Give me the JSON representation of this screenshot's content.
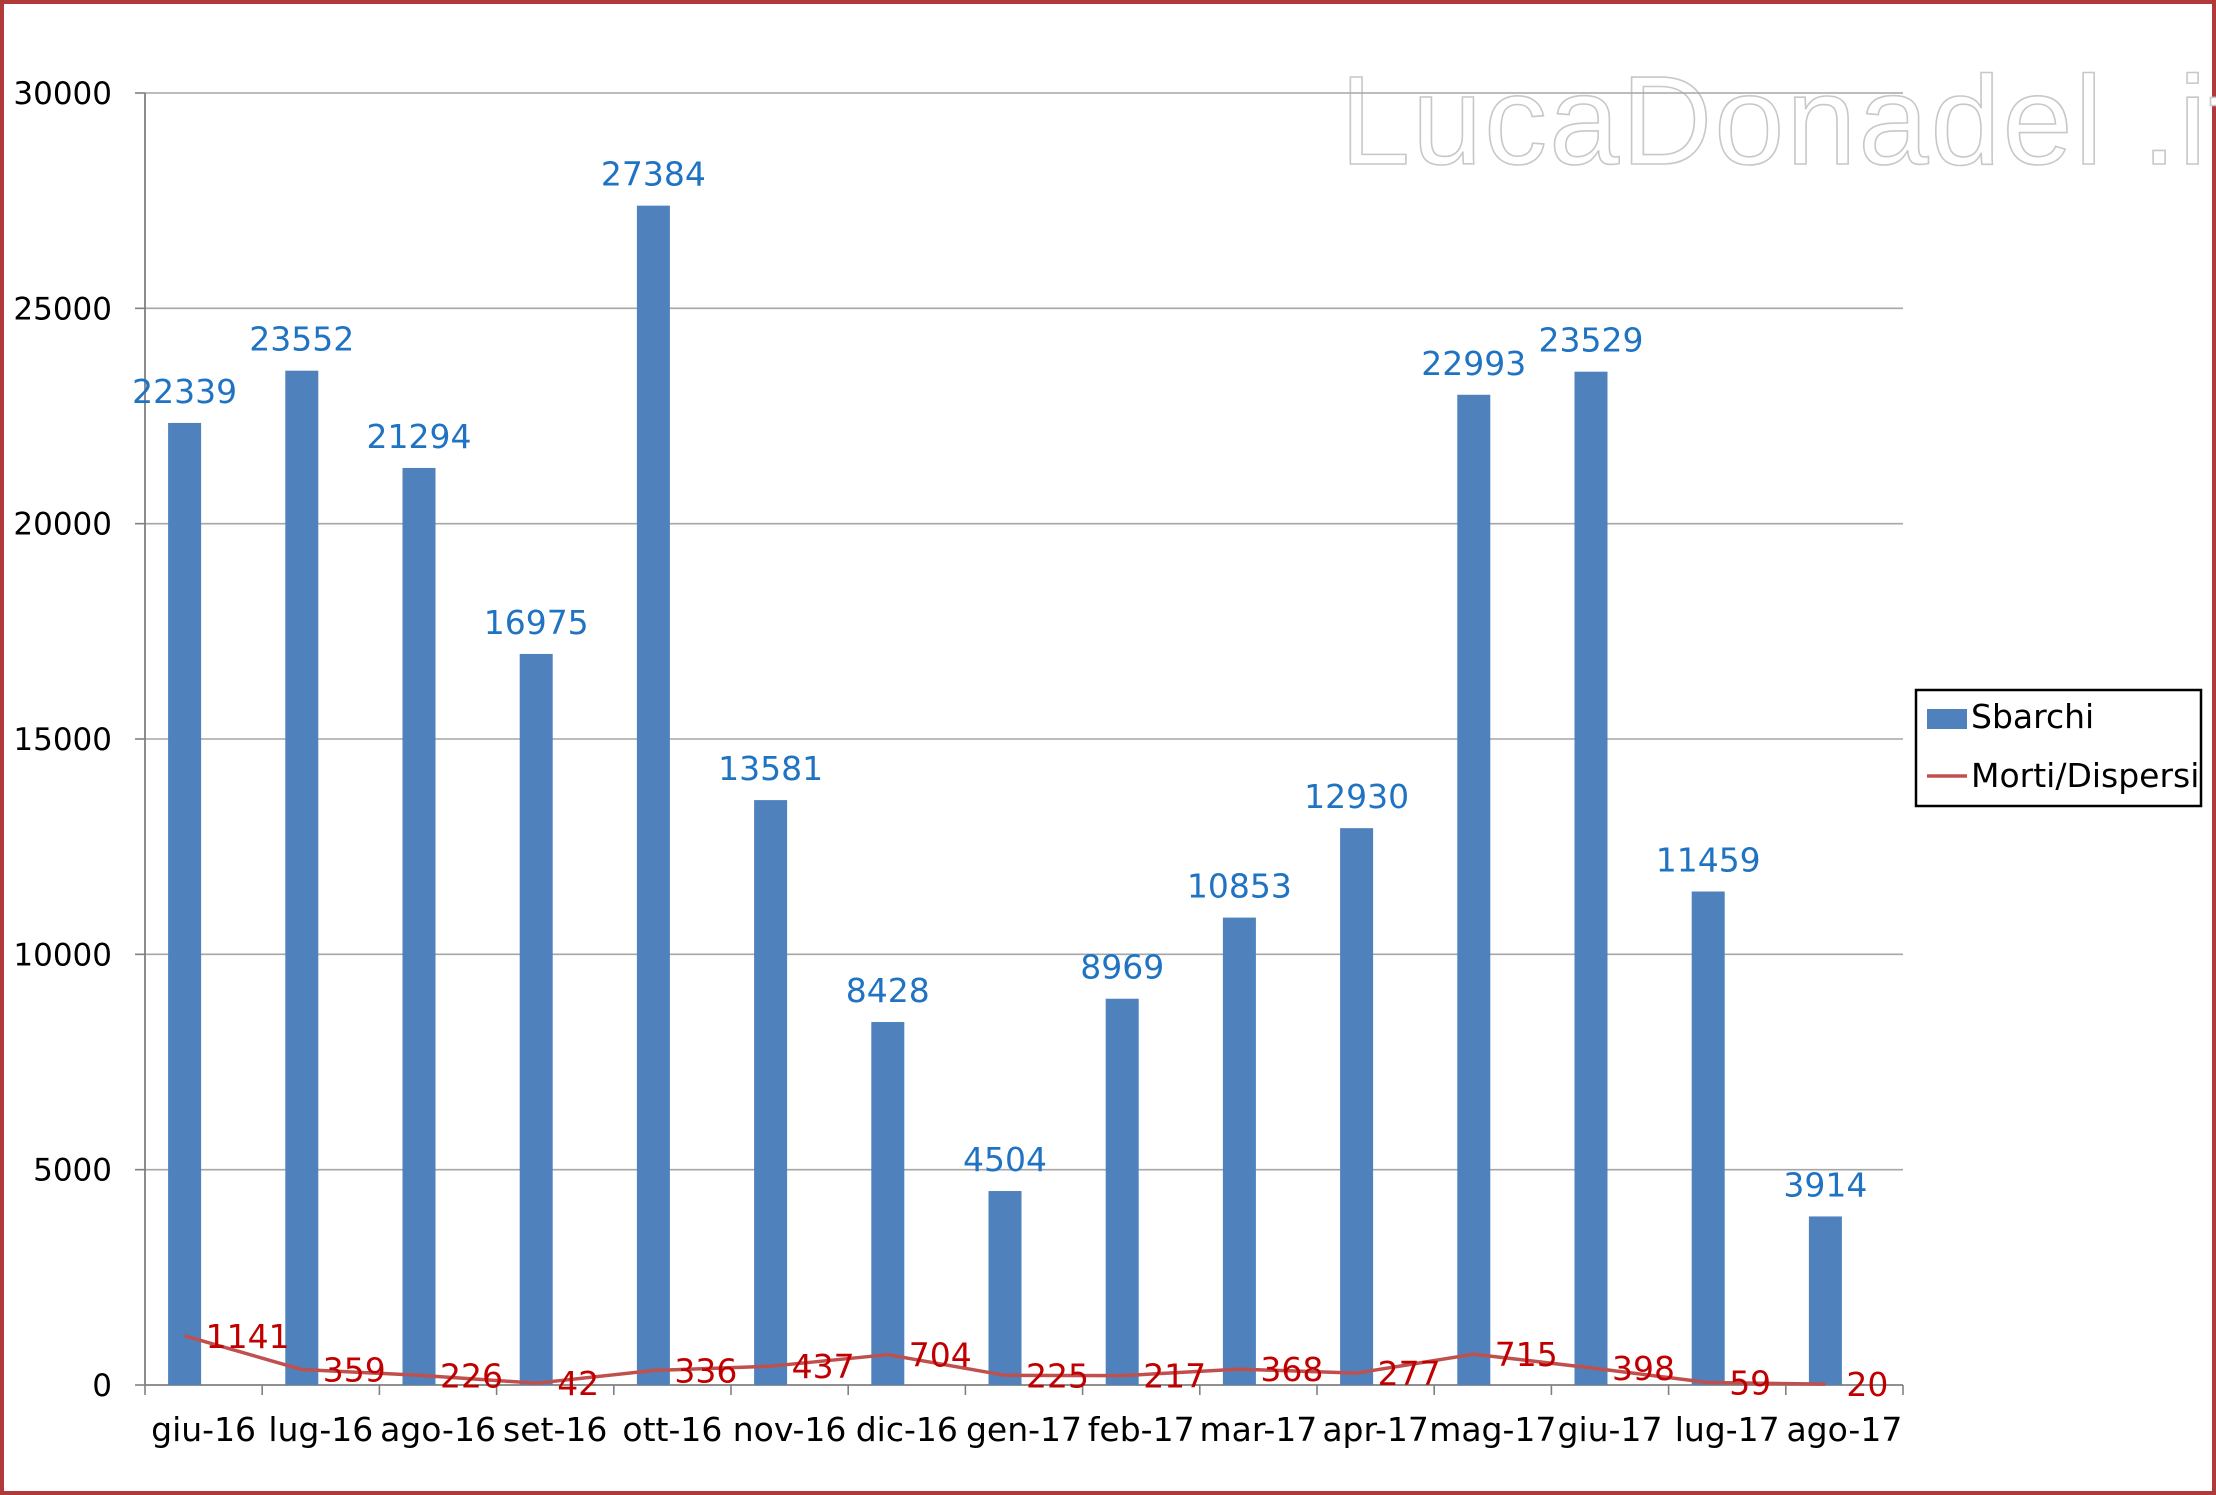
{
  "watermark": "LucaDonadel .it",
  "colors": {
    "bars": "#4f81bd",
    "line": "#c0504d",
    "bar_label": "#1f73c2",
    "line_label": "#c00000",
    "border": "#b03a3a",
    "grid": "#a6a6a6"
  },
  "chart_data": {
    "type": "bar",
    "categories": [
      "giu-16",
      "lug-16",
      "ago-16",
      "set-16",
      "ott-16",
      "nov-16",
      "dic-16",
      "gen-17",
      "feb-17",
      "mar-17",
      "apr-17",
      "mag-17",
      "giu-17",
      "lug-17",
      "ago-17"
    ],
    "series": [
      {
        "name": "Sbarchi",
        "type": "bar",
        "values": [
          22339,
          23552,
          21294,
          16975,
          27384,
          13581,
          8428,
          4504,
          8969,
          10853,
          12930,
          22993,
          23529,
          11459,
          3914
        ],
        "labels": [
          "22339",
          "23552",
          "21294",
          "16975",
          "27384",
          "13581",
          "8428",
          "4504",
          "8969",
          "10853",
          "12930",
          "22993",
          "23529",
          "11459",
          "3914"
        ]
      },
      {
        "name": "Morti/Dispersi",
        "type": "line",
        "values": [
          1141,
          359,
          226,
          42,
          336,
          437,
          704,
          225,
          217,
          368,
          277,
          715,
          398,
          59,
          20
        ],
        "labels": [
          "1141",
          "359",
          "226",
          "42",
          "336",
          "437",
          "704",
          "225",
          "217",
          "368",
          "277",
          "715",
          "398",
          "59",
          "20"
        ]
      }
    ],
    "ylim": [
      0,
      30000
    ],
    "yticks": [
      "0",
      "5000",
      "10000",
      "15000",
      "20000",
      "25000",
      "30000"
    ],
    "title": "",
    "xlabel": "",
    "ylabel": "",
    "grid": true,
    "legend_position": "right"
  }
}
